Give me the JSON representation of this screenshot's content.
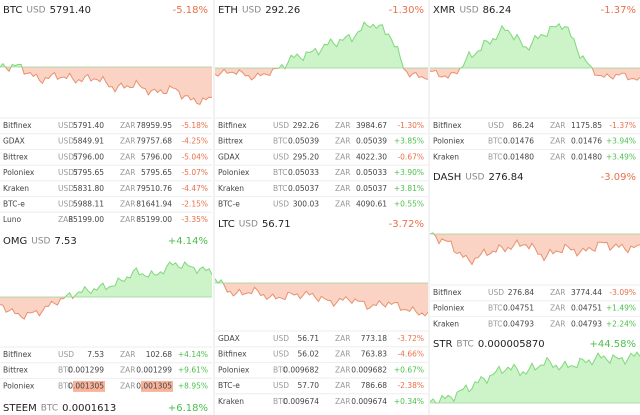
{
  "panels": [
    {
      "symbol": "BTC",
      "currency": "USD",
      "price": "5791.40",
      "change": "-5.18%",
      "rows": [
        {
          "exchange": "Bitfinex",
          "c1": "USD",
          "v1": "5791.40",
          "c2": "ZAR",
          "v2": "78959.95",
          "change": "-5.18%"
        },
        {
          "exchange": "GDAX",
          "c1": "USD",
          "v1": "5849.91",
          "c2": "ZAR",
          "v2": "79757.68",
          "change": "-4.25%"
        },
        {
          "exchange": "Bittrex",
          "c1": "USDT",
          "v1": "5796.00",
          "c2": "ZAR",
          "v2": "5796.00",
          "change": "-5.04%"
        },
        {
          "exchange": "Poloniex",
          "c1": "USDT",
          "v1": "5795.65",
          "c2": "ZAR",
          "v2": "5795.65",
          "change": "-5.07%"
        },
        {
          "exchange": "Kraken",
          "c1": "USD",
          "v1": "5831.80",
          "c2": "ZAR",
          "v2": "79510.76",
          "change": "-4.47%"
        },
        {
          "exchange": "BTC-e",
          "c1": "USD",
          "v1": "5988.11",
          "c2": "ZAR",
          "v2": "81641.94",
          "change": "-2.15%"
        },
        {
          "exchange": "Luno",
          "c1": "ZAR",
          "v1": "85199.00",
          "c2": "ZAR",
          "v2": "85199.00",
          "change": "-3.35%"
        }
      ]
    },
    {
      "symbol": "OMG",
      "currency": "USD",
      "price": "7.53",
      "change": "+4.14%",
      "rows": [
        {
          "exchange": "Bitfinex",
          "c1": "USD",
          "v1": "7.53",
          "c2": "ZAR",
          "v2": "102.68",
          "change": "+4.14%"
        },
        {
          "exchange": "Bittrex",
          "c1": "BTC",
          "v1": "0.001299",
          "c2": "ZAR",
          "v2": "0.001299",
          "change": "+9.61%"
        },
        {
          "exchange": "Poloniex",
          "c1": "BTC",
          "v1": "0.001305",
          "c2": "ZAR",
          "v2": "0.001305",
          "change": "+8.95%",
          "highlight": true
        }
      ]
    },
    {
      "symbol": "STEEM",
      "currency": "BTC",
      "price": "0.0001613",
      "change": "+6.18%",
      "rows": []
    },
    {
      "symbol": "ETH",
      "currency": "USD",
      "price": "292.26",
      "change": "-1.30%",
      "rows": [
        {
          "exchange": "Bitfinex",
          "c1": "USD",
          "v1": "292.26",
          "c2": "ZAR",
          "v2": "3984.67",
          "change": "-1.30%"
        },
        {
          "exchange": "Bittrex",
          "c1": "BTC",
          "v1": "0.05039",
          "c2": "ZAR",
          "v2": "0.05039",
          "change": "+3.85%"
        },
        {
          "exchange": "GDAX",
          "c1": "USD",
          "v1": "295.20",
          "c2": "ZAR",
          "v2": "4022.30",
          "change": "-0.67%"
        },
        {
          "exchange": "Poloniex",
          "c1": "BTC",
          "v1": "0.05033",
          "c2": "ZAR",
          "v2": "0.05033",
          "change": "+3.90%"
        },
        {
          "exchange": "Kraken",
          "c1": "BTC",
          "v1": "0.05037",
          "c2": "ZAR",
          "v2": "0.05037",
          "change": "+3.81%"
        },
        {
          "exchange": "BTC-e",
          "c1": "USD",
          "v1": "300.03",
          "c2": "ZAR",
          "v2": "4090.61",
          "change": "+0.55%"
        }
      ]
    },
    {
      "symbol": "LTC",
      "currency": "USD",
      "price": "56.71",
      "change": "-3.72%",
      "rows": [
        {
          "exchange": "GDAX",
          "c1": "USD",
          "v1": "56.71",
          "c2": "ZAR",
          "v2": "773.18",
          "change": "-3.72%"
        },
        {
          "exchange": "Bitfinex",
          "c1": "USD",
          "v1": "56.02",
          "c2": "ZAR",
          "v2": "763.83",
          "change": "-4.66%"
        },
        {
          "exchange": "Poloniex",
          "c1": "BTC",
          "v1": "0.009682",
          "c2": "ZAR",
          "v2": "0.009682",
          "change": "+0.67%"
        },
        {
          "exchange": "BTC-e",
          "c1": "USD",
          "v1": "57.70",
          "c2": "ZAR",
          "v2": "786.68",
          "change": "-2.38%"
        },
        {
          "exchange": "Kraken",
          "c1": "BTC",
          "v1": "0.009674",
          "c2": "ZAR",
          "v2": "0.009674",
          "change": "+0.34%"
        }
      ]
    },
    {
      "symbol": "XMR",
      "currency": "USD",
      "price": "86.24",
      "change": "-1.37%",
      "rows": [
        {
          "exchange": "Bitfinex",
          "c1": "USD",
          "v1": "86.24",
          "c2": "ZAR",
          "v2": "1175.85",
          "change": "-1.37%"
        },
        {
          "exchange": "Poloniex",
          "c1": "BTC",
          "v1": "0.01476",
          "c2": "ZAR",
          "v2": "0.01476",
          "change": "+3.94%"
        },
        {
          "exchange": "Kraken",
          "c1": "BTC",
          "v1": "0.01480",
          "c2": "ZAR",
          "v2": "0.01480",
          "change": "+3.49%"
        }
      ]
    },
    {
      "symbol": "DASH",
      "currency": "USD",
      "price": "276.84",
      "change": "-3.09%",
      "rows": [
        {
          "exchange": "Bitfinex",
          "c1": "USD",
          "v1": "276.84",
          "c2": "ZAR",
          "v2": "3774.44",
          "change": "-3.09%"
        },
        {
          "exchange": "Poloniex",
          "c1": "BTC",
          "v1": "0.04751",
          "c2": "ZAR",
          "v2": "0.04751",
          "change": "+1.49%"
        },
        {
          "exchange": "Kraken",
          "c1": "BTC",
          "v1": "0.04793",
          "c2": "ZAR",
          "v2": "0.04793",
          "change": "+2.24%"
        }
      ]
    },
    {
      "symbol": "STR",
      "currency": "BTC",
      "price": "0.000005870",
      "change": "+44.58%",
      "rows": []
    }
  ]
}
